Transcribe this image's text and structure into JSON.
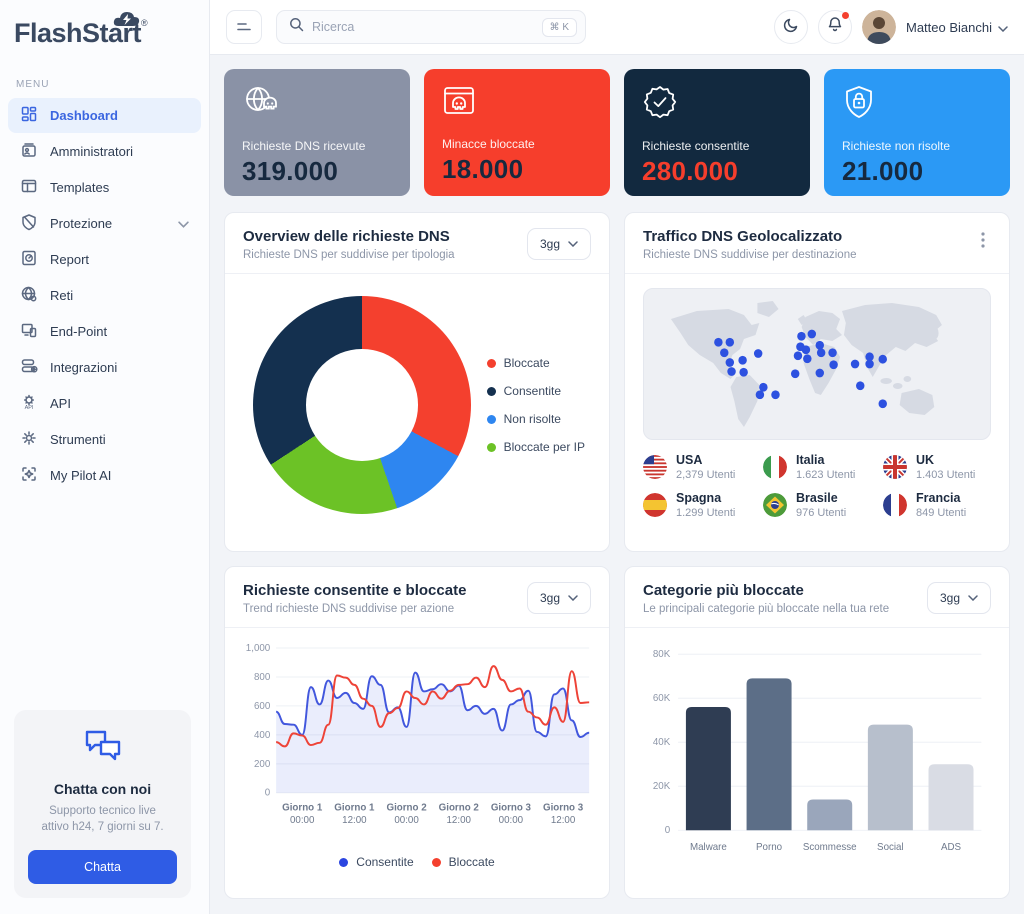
{
  "brand": {
    "name": "FlashStart",
    "registered_mark": "®"
  },
  "sidebar": {
    "menu_label": "MENU",
    "items": [
      {
        "label": "Dashboard",
        "icon": "dashboard-icon",
        "active": true,
        "chevron": false
      },
      {
        "label": "Amministratori",
        "icon": "admins-icon",
        "active": false,
        "chevron": false
      },
      {
        "label": "Templates",
        "icon": "templates-icon",
        "active": false,
        "chevron": false
      },
      {
        "label": "Protezione",
        "icon": "protection-icon",
        "active": false,
        "chevron": true
      },
      {
        "label": "Report",
        "icon": "report-icon",
        "active": false,
        "chevron": false
      },
      {
        "label": "Reti",
        "icon": "networks-icon",
        "active": false,
        "chevron": false
      },
      {
        "label": "End-Point",
        "icon": "endpoint-icon",
        "active": false,
        "chevron": false
      },
      {
        "label": "Integrazioni",
        "icon": "integrations-icon",
        "active": false,
        "chevron": false
      },
      {
        "label": "API",
        "icon": "api-icon",
        "active": false,
        "chevron": false
      },
      {
        "label": "Strumenti",
        "icon": "tools-icon",
        "active": false,
        "chevron": false
      },
      {
        "label": "My Pilot AI",
        "icon": "ai-icon",
        "active": false,
        "chevron": false
      }
    ],
    "chat": {
      "title": "Chatta con noi",
      "line1": "Supporto tecnico live",
      "line2": "attivo h24, 7 giorni su 7.",
      "button_label": "Chatta"
    }
  },
  "header": {
    "search_placeholder": "Ricerca",
    "search_shortcut": "⌘ K",
    "user_name": "Matteo Bianchi"
  },
  "stats": [
    {
      "label": "Richieste DNS ricevute",
      "value": "319.000",
      "bg": "#8a92a6",
      "value_color": "#16293f",
      "icon": "globe-skull-icon"
    },
    {
      "label": "Minacce bloccate",
      "value": "18.000",
      "bg": "#f63e2c",
      "value_color": "#16293f",
      "icon": "browser-skull-icon"
    },
    {
      "label": "Richieste consentite",
      "value": "280.000",
      "bg": "#12293f",
      "value_color": "#f63e2c",
      "icon": "badge-check-icon"
    },
    {
      "label": "Richieste non risolte",
      "value": "21.000",
      "bg": "#2b99f5",
      "value_color": "#16293f",
      "icon": "shield-lock-icon"
    }
  ],
  "chart_data": [
    {
      "type": "pie",
      "title": "Overview delle richieste DNS",
      "subtitle": "Richieste DNS per suddivise per tipologia",
      "range": "3gg",
      "start_angle_deg": 10,
      "segments": [
        {
          "label": "Bloccate",
          "color": "#f4402e",
          "pct": 30
        },
        {
          "label": "Consentite",
          "color": "#14304f",
          "pct": 37
        },
        {
          "label": "Non risolte",
          "color": "#2e86f0",
          "pct": 12
        },
        {
          "label": "Bloccate per IP",
          "color": "#6cc226",
          "pct": 21
        }
      ],
      "draw_order": [
        "Bloccate",
        "Non risolte",
        "Bloccate per IP",
        "Consentite"
      ]
    },
    {
      "type": "map",
      "title": "Traffico DNS Geolocalizzato",
      "subtitle": "Richieste DNS suddivise per destinazione",
      "dot_color": "#2d51e0",
      "dots": [
        [
          0.215,
          0.355
        ],
        [
          0.248,
          0.355
        ],
        [
          0.232,
          0.425
        ],
        [
          0.248,
          0.49
        ],
        [
          0.285,
          0.475
        ],
        [
          0.33,
          0.43
        ],
        [
          0.253,
          0.55
        ],
        [
          0.288,
          0.555
        ],
        [
          0.345,
          0.655
        ],
        [
          0.335,
          0.705
        ],
        [
          0.38,
          0.705
        ],
        [
          0.455,
          0.315
        ],
        [
          0.485,
          0.3
        ],
        [
          0.452,
          0.385
        ],
        [
          0.468,
          0.405
        ],
        [
          0.508,
          0.375
        ],
        [
          0.445,
          0.445
        ],
        [
          0.472,
          0.465
        ],
        [
          0.512,
          0.425
        ],
        [
          0.545,
          0.425
        ],
        [
          0.548,
          0.505
        ],
        [
          0.437,
          0.565
        ],
        [
          0.508,
          0.56
        ],
        [
          0.61,
          0.5
        ],
        [
          0.652,
          0.5
        ],
        [
          0.652,
          0.452
        ],
        [
          0.69,
          0.468
        ],
        [
          0.625,
          0.645
        ],
        [
          0.69,
          0.765
        ]
      ],
      "countries": [
        {
          "name": "USA",
          "users": "2,379 Utenti",
          "flag": "us"
        },
        {
          "name": "Italia",
          "users": "1.623 Utenti",
          "flag": "it"
        },
        {
          "name": "UK",
          "users": "1.403 Utenti",
          "flag": "uk"
        },
        {
          "name": "Spagna",
          "users": "1.299 Utenti",
          "flag": "es"
        },
        {
          "name": "Brasile",
          "users": "976 Utenti",
          "flag": "br"
        },
        {
          "name": "Francia",
          "users": "849 Utenti",
          "flag": "fr"
        }
      ]
    },
    {
      "type": "line",
      "title": "Richieste consentite e bloccate",
      "subtitle": "Trend richieste DNS suddivise per azione",
      "range": "3gg",
      "ylim": [
        0,
        1000
      ],
      "y_ticks": [
        "0",
        "200",
        "400",
        "600",
        "800",
        "1,000"
      ],
      "x_labels": [
        [
          "Giorno 1",
          "00:00"
        ],
        [
          "Giorno 1",
          "12:00"
        ],
        [
          "Giorno 2",
          "00:00"
        ],
        [
          "Giorno 2",
          "12:00"
        ],
        [
          "Giorno 3",
          "00:00"
        ],
        [
          "Giorno 3",
          "12:00"
        ]
      ],
      "series": [
        {
          "name": "Consentite",
          "color": "#4257dd",
          "fill": true,
          "values": [
            560,
            475,
            470,
            400,
            730,
            610,
            775,
            655,
            690,
            620,
            580,
            805,
            745,
            555,
            590,
            455,
            830,
            700,
            715,
            750,
            700,
            740,
            570,
            600,
            545,
            580,
            430,
            610,
            640,
            705,
            420,
            390,
            680,
            720,
            500,
            385,
            415
          ]
        },
        {
          "name": "Bloccate",
          "color": "#ee4337",
          "fill": false,
          "values": [
            350,
            320,
            410,
            395,
            330,
            345,
            470,
            810,
            795,
            745,
            650,
            600,
            455,
            550,
            585,
            700,
            655,
            610,
            700,
            650,
            705,
            745,
            750,
            795,
            730,
            875,
            780,
            700,
            720,
            560,
            520,
            470,
            590,
            490,
            840,
            620,
            625
          ]
        }
      ]
    },
    {
      "type": "bar",
      "title": "Categorie più bloccate",
      "subtitle": "Le principali categorie più bloccate nella tua rete",
      "range": "3gg",
      "ylim": [
        0,
        80000
      ],
      "y_ticks": [
        "0",
        "20K",
        "40K",
        "60K",
        "80K"
      ],
      "categories": [
        "Malware",
        "Porno",
        "Scommesse",
        "Social",
        "ADS"
      ],
      "values": [
        56000,
        69000,
        14000,
        48000,
        30000
      ],
      "colors": [
        "#2f3d53",
        "#5c6e87",
        "#9aa6bb",
        "#b7bfcc",
        "#d9dce4"
      ]
    }
  ]
}
